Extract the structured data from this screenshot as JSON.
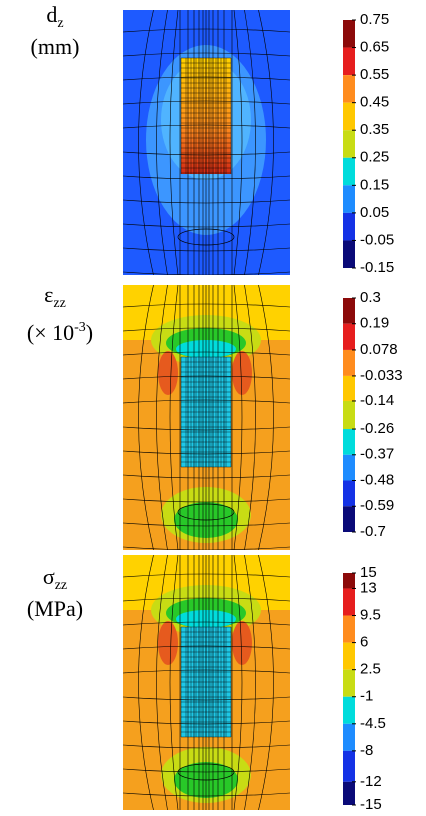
{
  "panels": [
    {
      "symbol": "d",
      "subscript": "z",
      "unit": "(mm)",
      "colorbar": [
        0.75,
        0.65,
        0.55,
        0.45,
        0.35,
        0.25,
        0.15,
        0.05,
        -0.05,
        -0.15
      ]
    },
    {
      "symbol": "ε",
      "subscript": "zz",
      "unit_prefix": "(× 10",
      "unit_superscript": "-3",
      "unit_suffix": ")",
      "colorbar": [
        0.3,
        0.19,
        0.078,
        -0.033,
        -0.14,
        -0.26,
        -0.37,
        -0.48,
        -0.59,
        -0.7
      ]
    },
    {
      "symbol": "σ",
      "subscript": "zz",
      "unit": "(MPa)",
      "colorbar": [
        15,
        13,
        9.5,
        6,
        2.5,
        -1,
        -4.5,
        -8,
        -12,
        -15
      ]
    }
  ]
}
